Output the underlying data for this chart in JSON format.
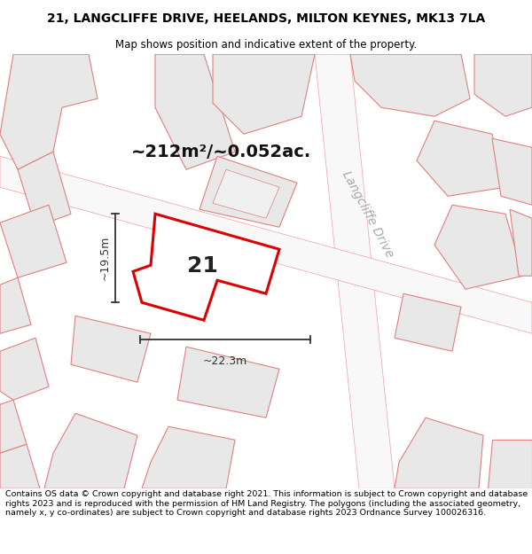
{
  "title_line1": "21, LANGCLIFFE DRIVE, HEELANDS, MILTON KEYNES, MK13 7LA",
  "title_line2": "Map shows position and indicative extent of the property.",
  "footer_text": "Contains OS data © Crown copyright and database right 2021. This information is subject to Crown copyright and database rights 2023 and is reproduced with the permission of HM Land Registry. The polygons (including the associated geometry, namely x, y co-ordinates) are subject to Crown copyright and database rights 2023 Ordnance Survey 100026316.",
  "area_text": "~212m²/~0.052ac.",
  "property_number": "21",
  "dim_width": "~22.3m",
  "dim_height": "~19.5m",
  "road_label": "Langcliffe Drive",
  "map_bg": "#ffffff",
  "plot_outline_color": "#dd0000",
  "plot_fill_color": "#ffffff",
  "building_fill": "#e8e8e8",
  "building_edge": "#e08080",
  "road_stripe_color": "#f0a0a0",
  "dim_color": "#333333",
  "road_label_color": "#aaaaaa",
  "title_fontsize": 10,
  "subtitle_fontsize": 8.5,
  "footer_fontsize": 6.8,
  "area_fontsize": 14,
  "number_fontsize": 18,
  "dim_fontsize": 9
}
